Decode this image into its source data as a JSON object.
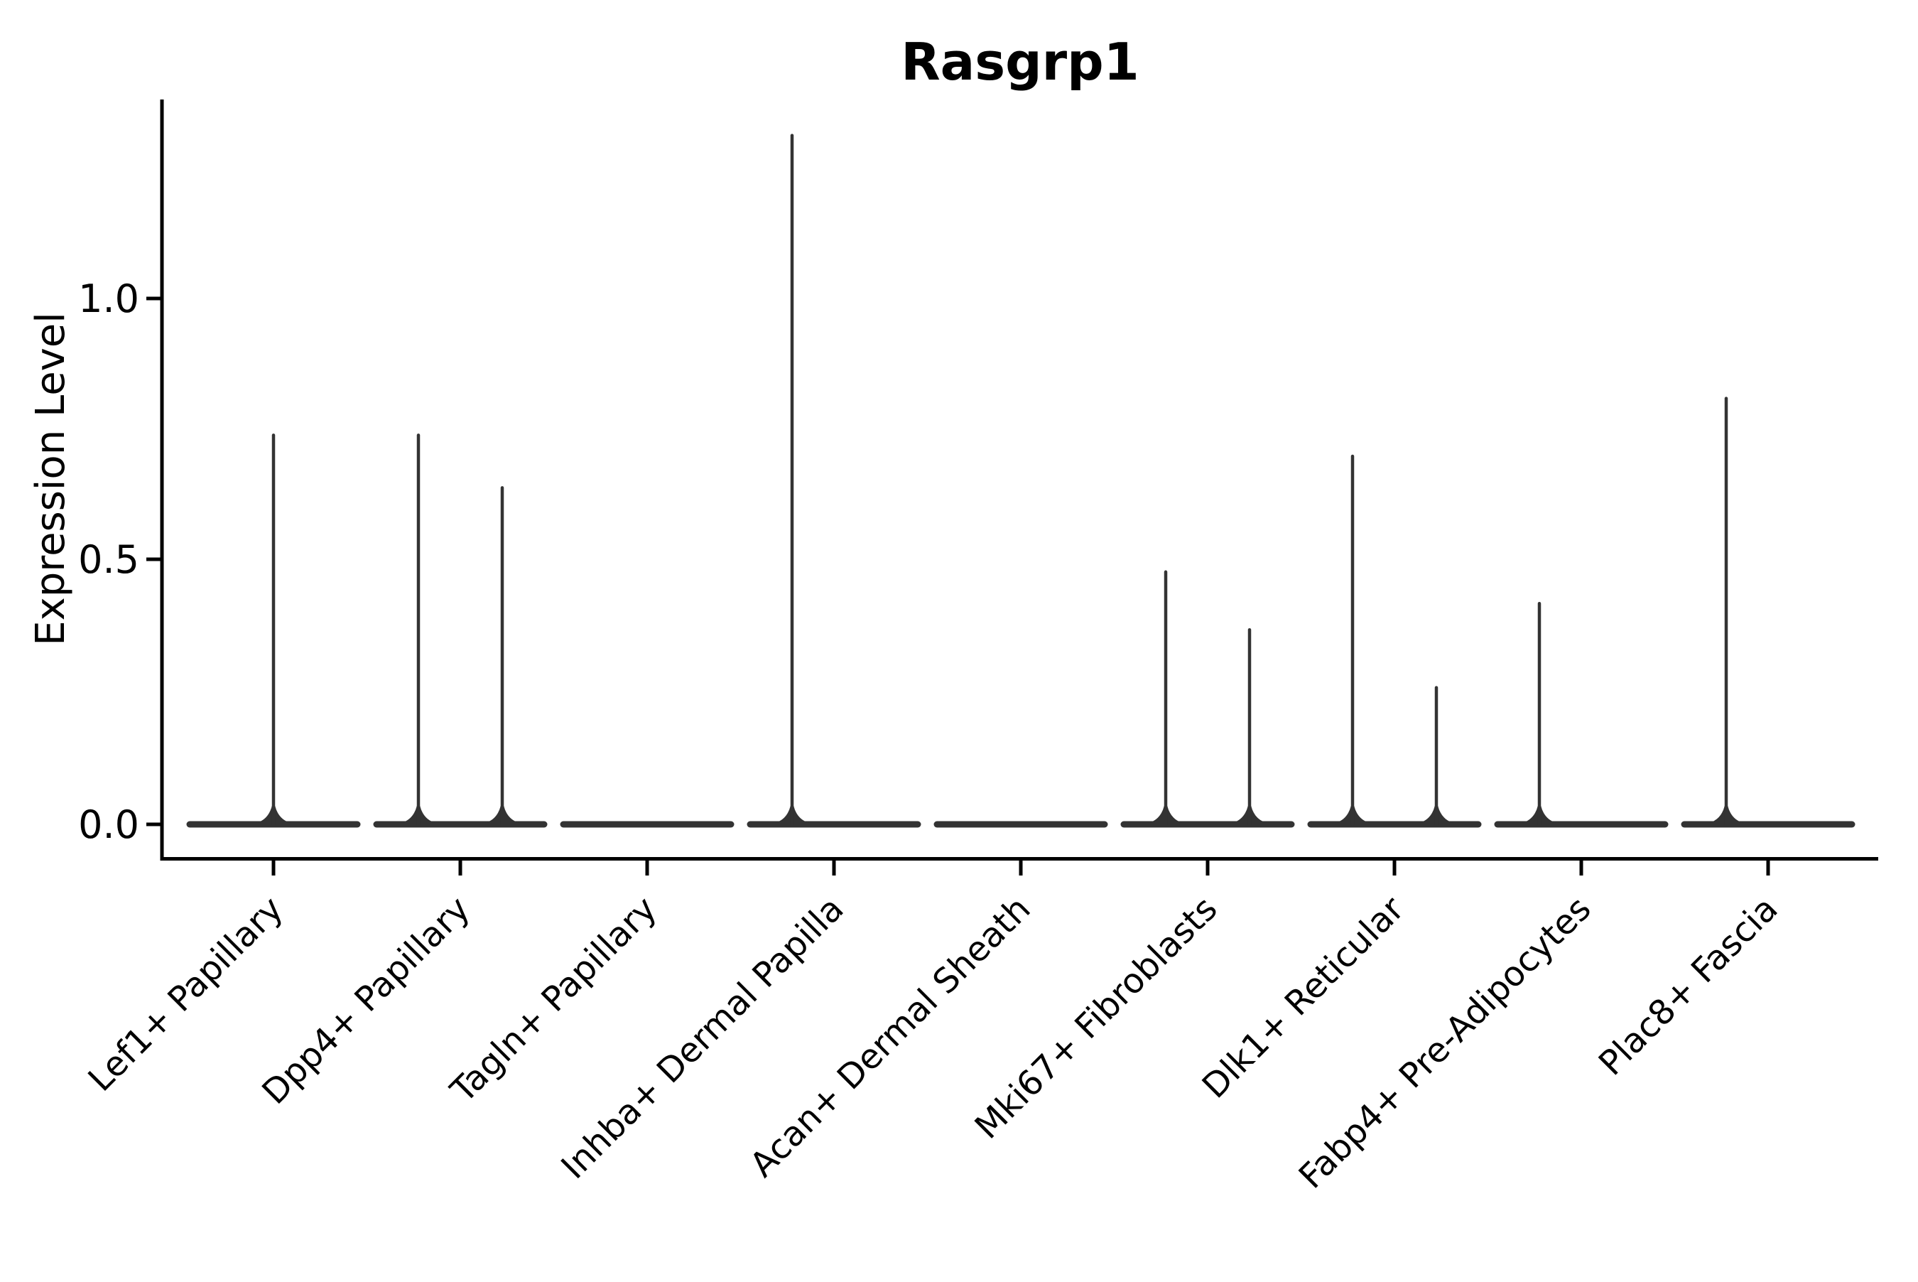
{
  "title": "Rasgrp1",
  "chart_data": {
    "type": "violin",
    "title": "Rasgrp1",
    "subtitle": "",
    "xlabel": "",
    "ylabel": "Expression Level",
    "yticks": [
      0.0,
      0.5,
      1.0
    ],
    "ytick_labels": [
      "0.0",
      "0.5",
      "1.0"
    ],
    "ylim": [
      -0.065,
      1.378
    ],
    "grid": false,
    "legend_position": "none",
    "background_color": "#ffffff",
    "axis_color": "#000000",
    "violin_line_color": "#333333",
    "xtick_rotation_degrees": 45,
    "categories": [
      "Lef1+ Papillary",
      "Dpp4+ Papillary",
      "Tagln+ Papillary",
      "Inhba+ Dermal Papilla",
      "Acan+ Dermal Sheath",
      "Mki67+ Fibroblasts",
      "Dlk1+ Reticular",
      "Fabp4+ Pre-Adipocytes",
      "Plac8+ Fascia"
    ],
    "violins": [
      {
        "category": "Lef1+ Papillary",
        "zero_bar": true,
        "spikes": [
          {
            "position": "center",
            "max": 0.74
          }
        ]
      },
      {
        "category": "Dpp4+ Papillary",
        "zero_bar": true,
        "spikes": [
          {
            "position": "left",
            "max": 0.74
          },
          {
            "position": "right",
            "max": 0.64
          }
        ]
      },
      {
        "category": "Tagln+ Papillary",
        "zero_bar": true,
        "spikes": []
      },
      {
        "category": "Inhba+ Dermal Papilla",
        "zero_bar": true,
        "spikes": [
          {
            "position": "left",
            "max": 1.31
          }
        ]
      },
      {
        "category": "Acan+ Dermal Sheath",
        "zero_bar": true,
        "spikes": []
      },
      {
        "category": "Mki67+ Fibroblasts",
        "zero_bar": true,
        "spikes": [
          {
            "position": "left",
            "max": 0.48
          },
          {
            "position": "right",
            "max": 0.37
          }
        ]
      },
      {
        "category": "Dlk1+ Reticular",
        "zero_bar": true,
        "spikes": [
          {
            "position": "left",
            "max": 0.7
          },
          {
            "position": "right",
            "max": 0.26
          }
        ]
      },
      {
        "category": "Fabp4+ Pre-Adipocytes",
        "zero_bar": true,
        "spikes": [
          {
            "position": "left",
            "max": 0.42
          }
        ]
      },
      {
        "category": "Plac8+ Fascia",
        "zero_bar": true,
        "spikes": [
          {
            "position": "left",
            "max": 0.81
          }
        ]
      }
    ]
  }
}
